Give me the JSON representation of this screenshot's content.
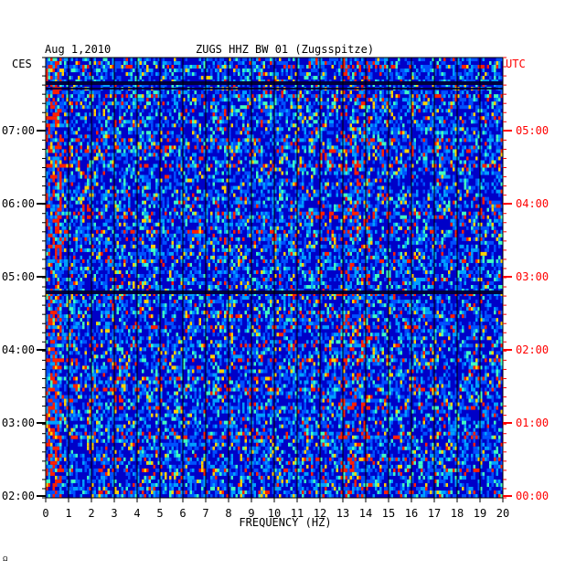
{
  "header": {
    "date": "Aug 1,2010",
    "station": "ZUGS HHZ BW 01 (Zugsspitze)",
    "left_zone": "CES",
    "right_zone": "UTC"
  },
  "chart_data": {
    "type": "heatmap",
    "title": "ZUGS HHZ BW 01 (Zugsspitze)",
    "date": "Aug 1,2010",
    "xlabel": "FREQUENCY (HZ)",
    "xlim": [
      0,
      20
    ],
    "x_ticks": [
      "0",
      "1",
      "2",
      "3",
      "4",
      "5",
      "6",
      "7",
      "8",
      "9",
      "10",
      "11",
      "12",
      "13",
      "14",
      "15",
      "16",
      "17",
      "18",
      "19",
      "20"
    ],
    "left_axis_label": "CES",
    "left_ticks": [
      "07:00",
      "06:00",
      "05:00",
      "04:00",
      "03:00",
      "02:00"
    ],
    "right_axis_label": "UTC",
    "right_ticks": [
      "05:00",
      "04:00",
      "03:00",
      "02:00",
      "01:00",
      "00:00"
    ],
    "colors": {
      "background": "#0000c8",
      "right_axis": "#ff0000",
      "grid": "#000000"
    }
  },
  "footer": {
    "mark": "Ω"
  }
}
